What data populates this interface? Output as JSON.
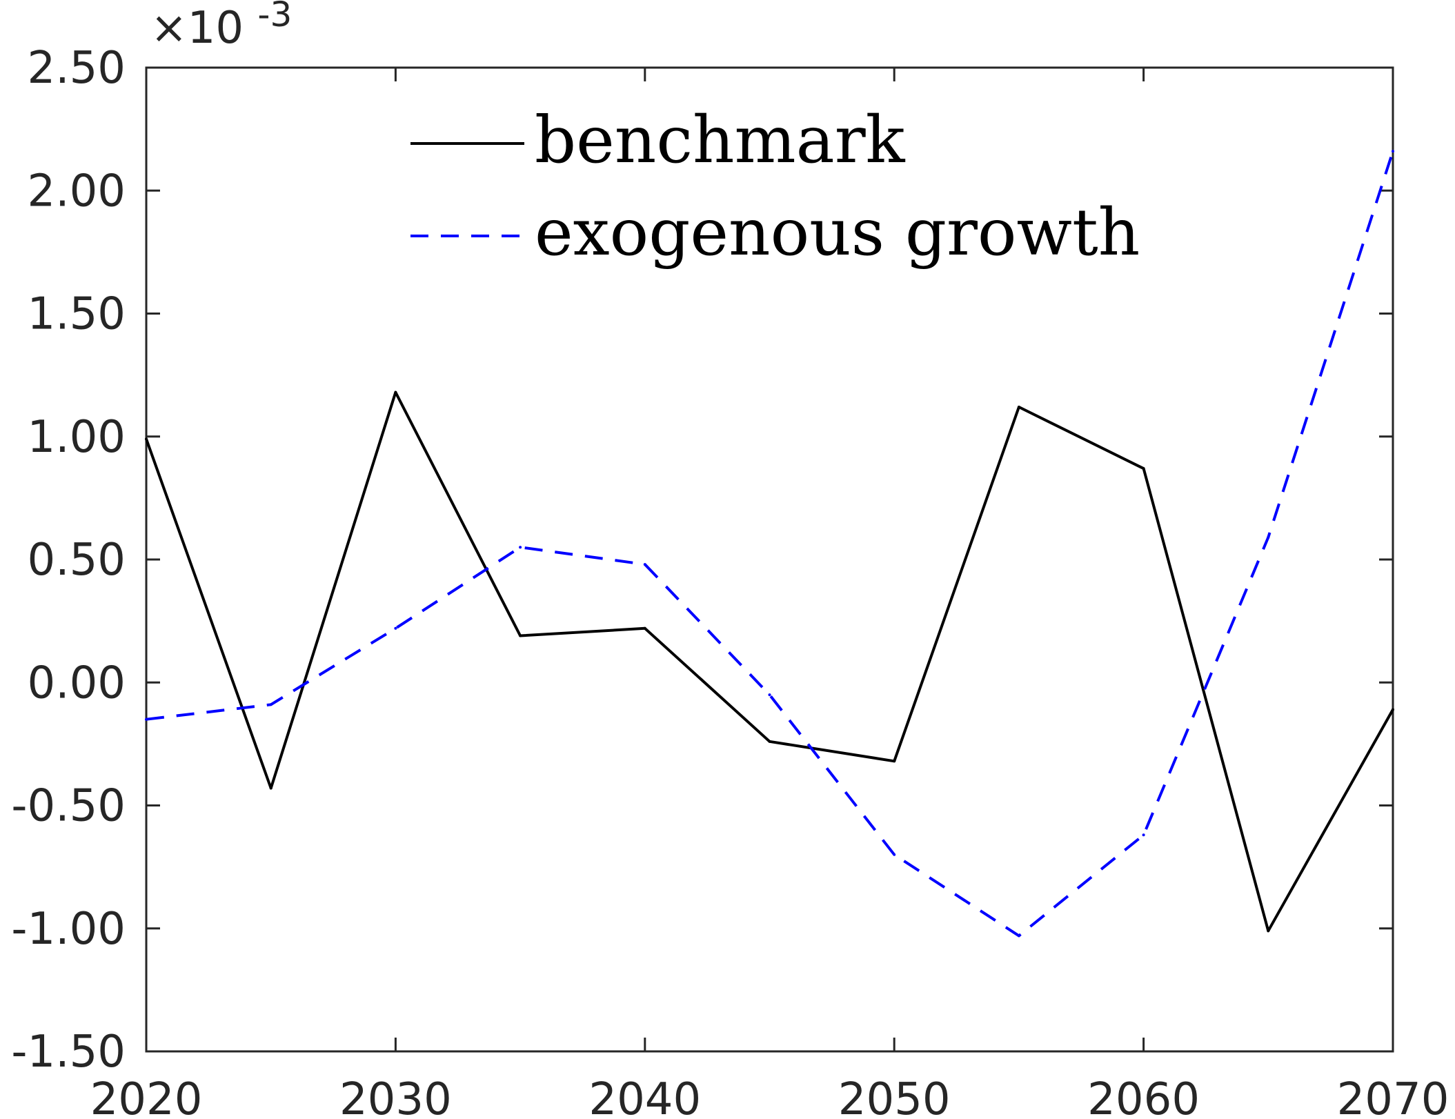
{
  "chart_data": {
    "type": "line",
    "title": "",
    "xlabel": "",
    "ylabel": "",
    "exponent_label": "×10-3",
    "exponent_base": "×10",
    "exponent_power": "-3",
    "xlim": [
      2020,
      2070
    ],
    "ylim": [
      -1.5,
      2.5
    ],
    "xticks": [
      "2020",
      "2030",
      "2040",
      "2050",
      "2060",
      "2070"
    ],
    "yticks": [
      "2.50",
      "2.00",
      "1.50",
      "1.00",
      "0.50",
      "0.00",
      "-0.50",
      "-1.00",
      "-1.50"
    ],
    "x": [
      2020,
      2025,
      2030,
      2035,
      2040,
      2045,
      2050,
      2055,
      2060,
      2065,
      2070
    ],
    "series": [
      {
        "name": "benchmark",
        "color": "#000000",
        "style": "solid",
        "values": [
          0.99,
          -0.43,
          1.18,
          0.19,
          0.22,
          -0.24,
          -0.32,
          1.12,
          0.87,
          -1.01,
          -0.11
        ]
      },
      {
        "name": "exogenous growth",
        "color": "#0000ff",
        "style": "dashed",
        "values": [
          -0.15,
          -0.09,
          0.22,
          0.55,
          0.48,
          -0.05,
          -0.7,
          -1.03,
          -0.62,
          0.59,
          2.16
        ]
      }
    ],
    "legend_position": "top-center",
    "grid": false
  }
}
